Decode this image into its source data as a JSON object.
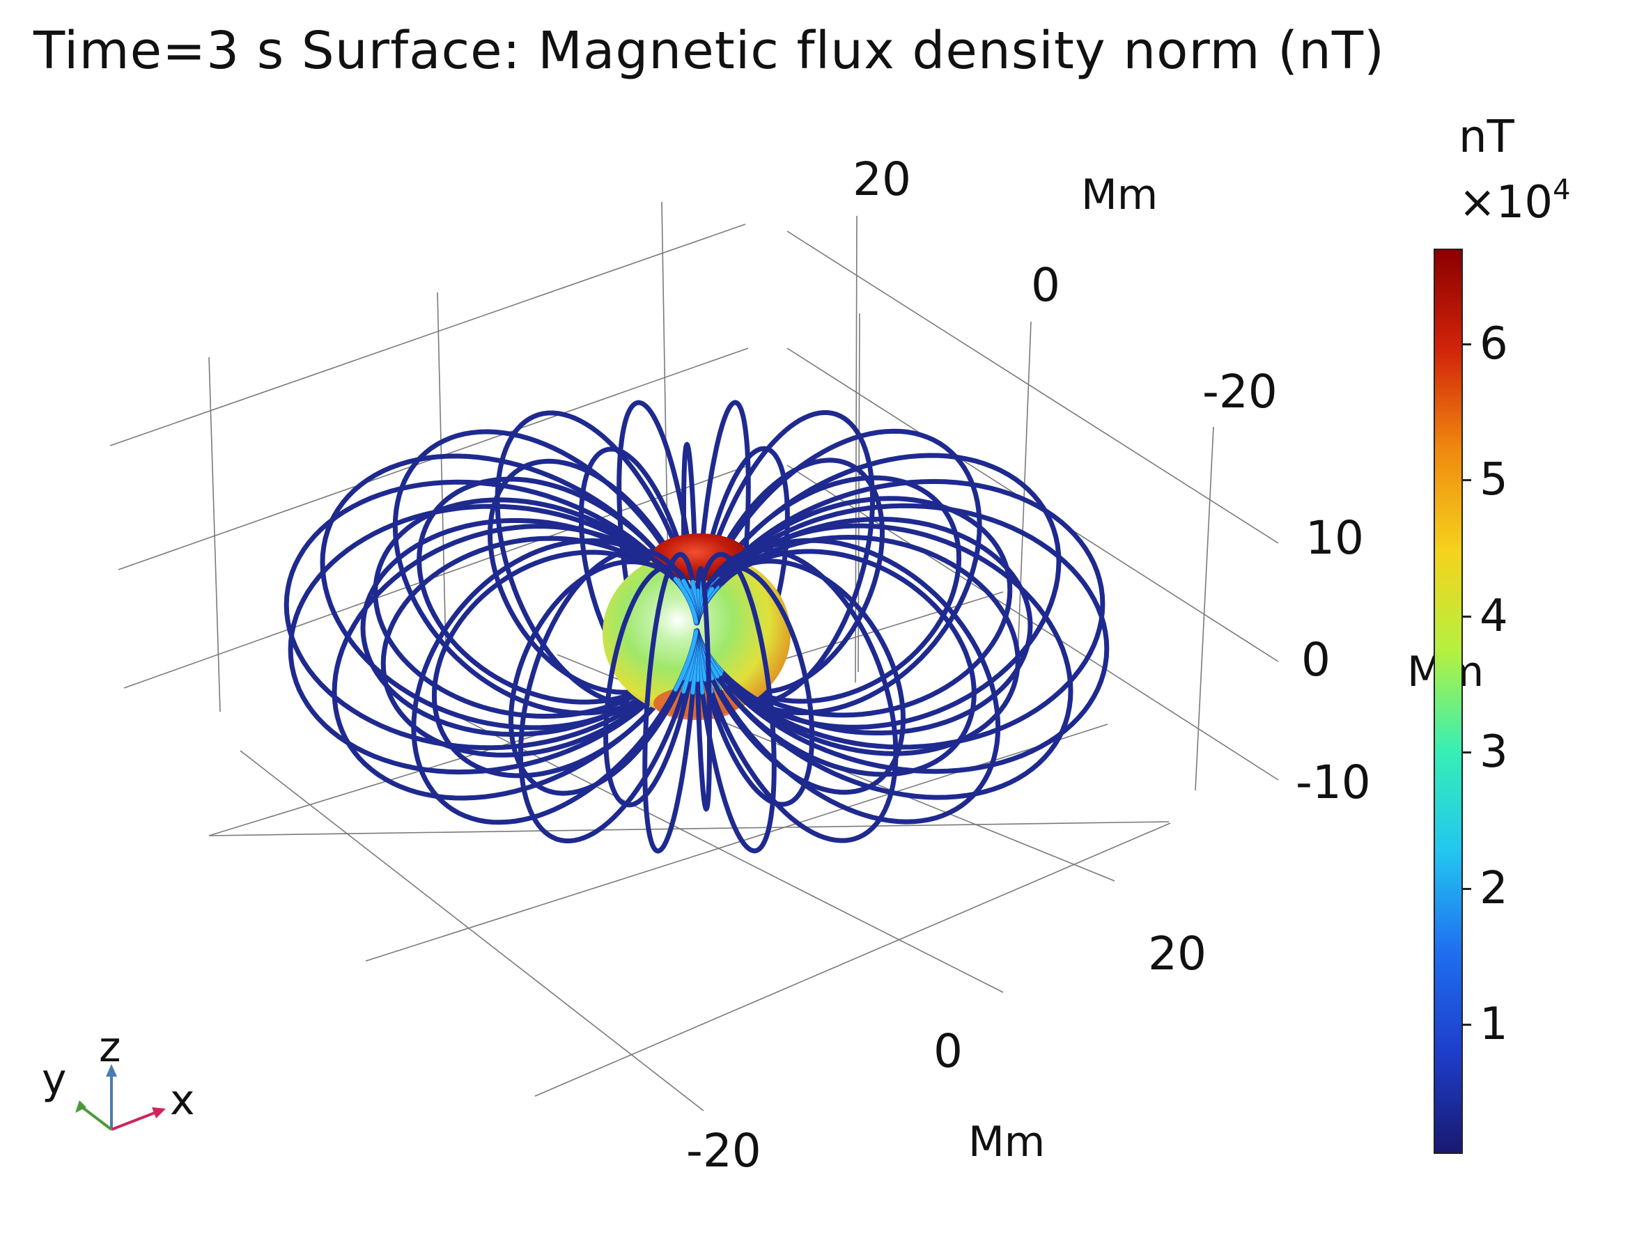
{
  "title": "Time=3 s Surface: Magnetic flux density norm (nT)",
  "axes": {
    "x_unit": "Mm",
    "y_unit": "Mm",
    "z_unit": "Mm",
    "x_ticks": [
      "-20",
      "0",
      "20"
    ],
    "y_ticks": [
      "20",
      "0",
      "-20"
    ],
    "z_ticks": [
      "10",
      "0",
      "-10"
    ],
    "triad": {
      "x": "x",
      "y": "y",
      "z": "z"
    }
  },
  "colorbar": {
    "unit": "nT",
    "multiplier": "×10",
    "exponent": "4",
    "ticks": [
      "1",
      "2",
      "3",
      "4",
      "5",
      "6"
    ],
    "range": [
      0.05,
      6.7
    ],
    "colormap": [
      "#191970",
      "#1d3ecb",
      "#1f6ff0",
      "#22c6f0",
      "#36efb4",
      "#b4f040",
      "#f5d21c",
      "#f08a0f",
      "#d2240a",
      "#8b0000"
    ]
  },
  "chart_data": {
    "type": "3d-surface-streamlines",
    "title": "Time=3 s Surface: Magnetic flux density norm (nT)",
    "quantity": "Magnetic flux density norm",
    "unit": "nT",
    "time_s": 3,
    "color_range_nT": [
      500,
      67000
    ],
    "axes": {
      "x": {
        "unit": "Mm",
        "ticks": [
          -20,
          0,
          20
        ]
      },
      "y": {
        "unit": "Mm",
        "ticks": [
          20,
          0,
          -20
        ]
      },
      "z": {
        "unit": "Mm",
        "ticks": [
          10,
          0,
          -10
        ]
      }
    },
    "objects": [
      "central sphere (dipole)",
      "dipole field lines"
    ],
    "grid": true
  }
}
